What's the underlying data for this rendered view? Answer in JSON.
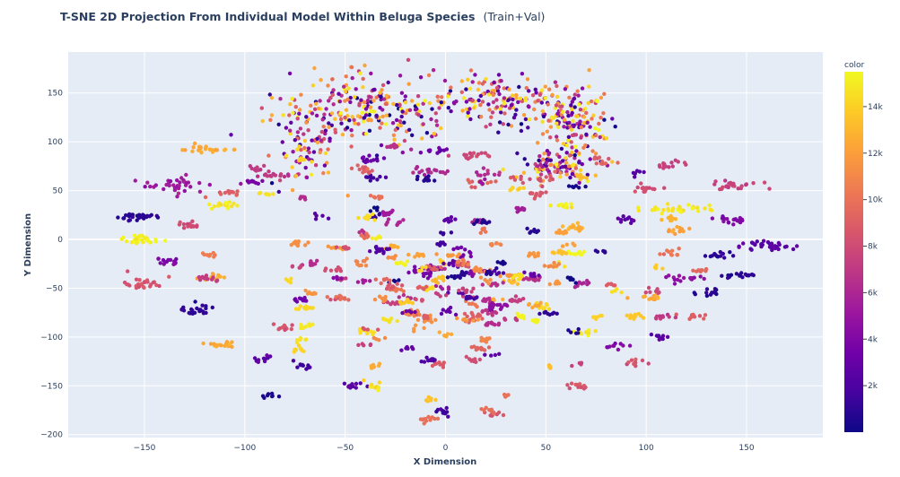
{
  "chart_data": {
    "type": "scatter",
    "title": "T-SNE 2D Projection From Individual Model Within Beluga Species",
    "subtitle": "(Train+Val)",
    "xlabel": "X Dimension",
    "ylabel": "Y Dimension",
    "xlim": [
      -188,
      188
    ],
    "ylim": [
      -203,
      192
    ],
    "x_ticks": [
      -150,
      -100,
      -50,
      0,
      50,
      100,
      150
    ],
    "x_tick_labels": [
      "−150",
      "−100",
      "−50",
      "0",
      "50",
      "100",
      "150"
    ],
    "y_ticks": [
      -200,
      -150,
      -100,
      -50,
      0,
      50,
      100,
      150
    ],
    "y_tick_labels": [
      "−200",
      "−150",
      "−100",
      "−50",
      "0",
      "50",
      "100",
      "150"
    ],
    "grid": true,
    "plot_bgcolor": "#e5ecf6",
    "colorbar": {
      "title": "color",
      "range": [
        0,
        15500
      ],
      "ticks": [
        2000,
        4000,
        6000,
        8000,
        10000,
        12000,
        14000
      ],
      "tick_labels": [
        "2k",
        "4k",
        "6k",
        "8k",
        "10k",
        "12k",
        "14k"
      ],
      "colorscale": [
        "#0d0887",
        "#46039f",
        "#7201a8",
        "#9c179e",
        "#bd3786",
        "#d8576b",
        "#ed7953",
        "#fb9f3a",
        "#fdca26",
        "#f0f921"
      ]
    },
    "clusters": [
      {
        "x": -155,
        "y": 23,
        "sx": 6,
        "sy": 2,
        "n": 28,
        "c": 1000
      },
      {
        "x": -152,
        "y": 0,
        "sx": 6,
        "sy": 2.5,
        "n": 30,
        "c": 15200
      },
      {
        "x": -150,
        "y": -45,
        "sx": 6,
        "sy": 3,
        "n": 28,
        "c": 8500
      },
      {
        "x": -138,
        "y": -22,
        "sx": 4,
        "sy": 2,
        "n": 14,
        "c": 4000
      },
      {
        "x": -127,
        "y": -72,
        "sx": 5,
        "sy": 3,
        "n": 24,
        "c": 1000
      },
      {
        "x": -135,
        "y": 55,
        "sx": 9,
        "sy": 4,
        "n": 36,
        "c": 5200
      },
      {
        "x": -120,
        "y": 92,
        "sx": 6,
        "sy": 2,
        "n": 26,
        "c": 12500
      },
      {
        "x": -125,
        "y": 15,
        "sx": 4,
        "sy": 2,
        "n": 14,
        "c": 8000
      },
      {
        "x": -110,
        "y": 35,
        "sx": 4,
        "sy": 2,
        "n": 16,
        "c": 15000
      },
      {
        "x": -112,
        "y": -108,
        "sx": 4,
        "sy": 2,
        "n": 16,
        "c": 12500
      },
      {
        "x": -118,
        "y": -40,
        "sx": 4,
        "sy": 2,
        "n": 12,
        "c": 12500
      },
      {
        "x": -110,
        "y": 48,
        "sx": 4,
        "sy": 2,
        "n": 12,
        "c": 9000
      },
      {
        "x": -93,
        "y": 72,
        "sx": 3,
        "sy": 2,
        "n": 10,
        "c": 7000
      },
      {
        "x": -90,
        "y": -122,
        "sx": 3,
        "sy": 2,
        "n": 10,
        "c": 2500
      },
      {
        "x": -85,
        "y": 65,
        "sx": 6,
        "sy": 2,
        "n": 18,
        "c": 7000
      },
      {
        "x": -40,
        "y": 133,
        "sx": 22,
        "sy": 18,
        "n": 240,
        "c": 6000,
        "mixed": true
      },
      {
        "x": 30,
        "y": 142,
        "sx": 18,
        "sy": 13,
        "n": 170,
        "c": 7000,
        "mixed": true
      },
      {
        "x": 64,
        "y": 120,
        "sx": 9,
        "sy": 20,
        "n": 140,
        "c": 7000,
        "mixed": true
      },
      {
        "x": 54,
        "y": 75,
        "sx": 9,
        "sy": 8,
        "n": 90,
        "c": 8000,
        "mixed": true
      },
      {
        "x": -70,
        "y": 100,
        "sx": 8,
        "sy": 20,
        "n": 80,
        "c": 6000,
        "mixed": true
      },
      {
        "x": -38,
        "y": 83,
        "sx": 4,
        "sy": 2,
        "n": 12,
        "c": 3000
      },
      {
        "x": -5,
        "y": 90,
        "sx": 3,
        "sy": 2,
        "n": 10,
        "c": 3000
      },
      {
        "x": 13,
        "y": 87,
        "sx": 5,
        "sy": 2,
        "n": 16,
        "c": 8000
      },
      {
        "x": -38,
        "y": 63,
        "sx": 3,
        "sy": 2,
        "n": 10,
        "c": 1500
      },
      {
        "x": -8,
        "y": 70,
        "sx": 6,
        "sy": 2,
        "n": 16,
        "c": 6000
      },
      {
        "x": -40,
        "y": 73,
        "sx": 4,
        "sy": 2,
        "n": 12,
        "c": 9000
      },
      {
        "x": 20,
        "y": 68,
        "sx": 4,
        "sy": 2,
        "n": 10,
        "c": 6500
      },
      {
        "x": 18,
        "y": 58,
        "sx": 4,
        "sy": 2,
        "n": 12,
        "c": 9000
      },
      {
        "x": 44,
        "y": 62,
        "sx": 6,
        "sy": 2,
        "n": 16,
        "c": 8500
      },
      {
        "x": 33,
        "y": 53,
        "sx": 3,
        "sy": 2,
        "n": 8,
        "c": 14000
      },
      {
        "x": 80,
        "y": 80,
        "sx": 4,
        "sy": 2,
        "n": 12,
        "c": 9000
      },
      {
        "x": 100,
        "y": 52,
        "sx": 4,
        "sy": 2,
        "n": 14,
        "c": 8000
      },
      {
        "x": 112,
        "y": 77,
        "sx": 4,
        "sy": 2,
        "n": 14,
        "c": 7500
      },
      {
        "x": 115,
        "y": 32,
        "sx": 9,
        "sy": 2.5,
        "n": 30,
        "c": 14800
      },
      {
        "x": 145,
        "y": 55,
        "sx": 6,
        "sy": 2.5,
        "n": 24,
        "c": 7500
      },
      {
        "x": 143,
        "y": 20,
        "sx": 5,
        "sy": 2,
        "n": 18,
        "c": 4000
      },
      {
        "x": 158,
        "y": -6,
        "sx": 7,
        "sy": 2.5,
        "n": 34,
        "c": 2500
      },
      {
        "x": 137,
        "y": -15,
        "sx": 4,
        "sy": 2,
        "n": 14,
        "c": 1000
      },
      {
        "x": 148,
        "y": -37,
        "sx": 5,
        "sy": 2,
        "n": 18,
        "c": 800
      },
      {
        "x": 120,
        "y": -40,
        "sx": 5,
        "sy": 2,
        "n": 18,
        "c": 4500
      },
      {
        "x": 133,
        "y": -55,
        "sx": 4,
        "sy": 2,
        "n": 14,
        "c": 800
      },
      {
        "x": 115,
        "y": 10,
        "sx": 4,
        "sy": 2,
        "n": 12,
        "c": 12000
      },
      {
        "x": 112,
        "y": -13,
        "sx": 4,
        "sy": 2,
        "n": 10,
        "c": 10000
      },
      {
        "x": 125,
        "y": -78,
        "sx": 3,
        "sy": 2,
        "n": 10,
        "c": 9000
      },
      {
        "x": 100,
        "y": -60,
        "sx": 4,
        "sy": 2,
        "n": 12,
        "c": 12500
      },
      {
        "x": 107,
        "y": -80,
        "sx": 3,
        "sy": 2,
        "n": 10,
        "c": 7000
      },
      {
        "x": 108,
        "y": -100,
        "sx": 3,
        "sy": 2,
        "n": 10,
        "c": 2500
      },
      {
        "x": 95,
        "y": -125,
        "sx": 3,
        "sy": 2,
        "n": 10,
        "c": 8500
      },
      {
        "x": 65,
        "y": -150,
        "sx": 4,
        "sy": 2,
        "n": 12,
        "c": 8500
      },
      {
        "x": 25,
        "y": -178,
        "sx": 3,
        "sy": 2,
        "n": 10,
        "c": 8500
      },
      {
        "x": -1,
        "y": -175,
        "sx": 2,
        "sy": 2.5,
        "n": 10,
        "c": 1500
      },
      {
        "x": -45,
        "y": -150,
        "sx": 4,
        "sy": 2,
        "n": 12,
        "c": 2500
      },
      {
        "x": -35,
        "y": -150,
        "sx": 3,
        "sy": 2,
        "n": 10,
        "c": 14500
      },
      {
        "x": -70,
        "y": -130,
        "sx": 3,
        "sy": 2,
        "n": 10,
        "c": 1500
      },
      {
        "x": -80,
        "y": -90,
        "sx": 3,
        "sy": 2,
        "n": 10,
        "c": 8500
      },
      {
        "x": 85,
        "y": -110,
        "sx": 3,
        "sy": 2,
        "n": 10,
        "c": 4000
      },
      {
        "x": 70,
        "y": -95,
        "sx": 3,
        "sy": 2,
        "n": 10,
        "c": 15000
      },
      {
        "x": 60,
        "y": 35,
        "sx": 3,
        "sy": 2,
        "n": 10,
        "c": 15000
      },
      {
        "x": 90,
        "y": 20,
        "sx": 3,
        "sy": 2,
        "n": 10,
        "c": 2500
      },
      {
        "x": 0,
        "y": -45,
        "sx": 48,
        "sy": 52,
        "n": 1400,
        "c": 7500,
        "mixed": true,
        "clumpy": true
      }
    ]
  }
}
